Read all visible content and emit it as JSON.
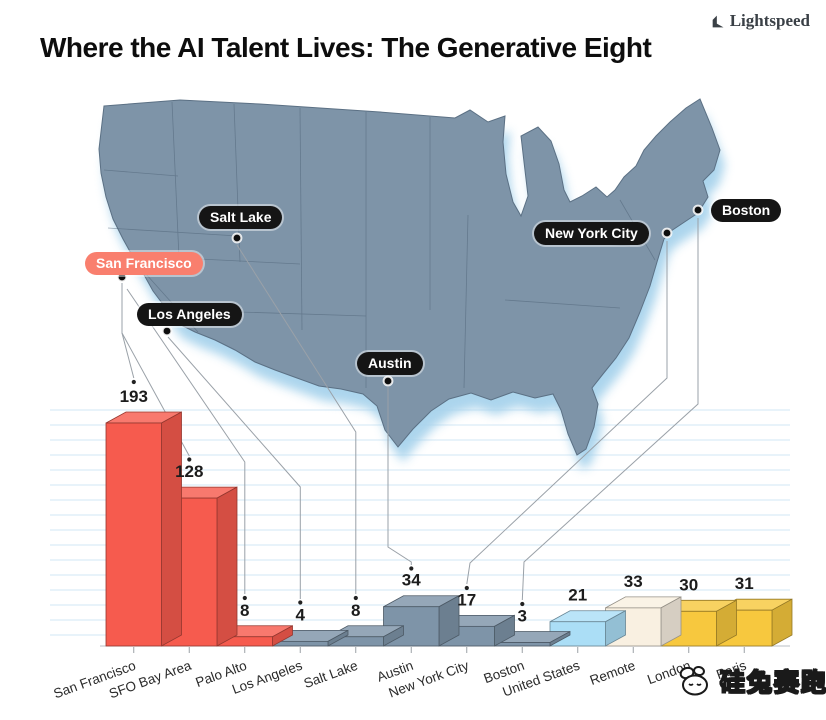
{
  "header": {
    "title": "Where the AI Talent Lives: The Generative Eight",
    "brand": "Lightspeed"
  },
  "map": {
    "labels": [
      {
        "id": "san-francisco",
        "text": "San Francisco",
        "style": "salmon"
      },
      {
        "id": "salt-lake",
        "text": "Salt Lake",
        "style": "dark"
      },
      {
        "id": "los-angeles",
        "text": "Los Angeles",
        "style": "dark"
      },
      {
        "id": "austin",
        "text": "Austin",
        "style": "dark"
      },
      {
        "id": "new-york-city",
        "text": "New York City",
        "style": "dark"
      },
      {
        "id": "boston",
        "text": "Boston",
        "style": "dark"
      }
    ]
  },
  "chart_data": {
    "type": "bar",
    "title": "Where the AI Talent Lives: The Generative Eight",
    "categories": [
      "San Francisco",
      "SFO Bay Area",
      "Palo Alto",
      "Los Angeles",
      "Salt Lake",
      "Austin",
      "New York City",
      "Boston",
      "United States",
      "Remote",
      "London",
      "Paris"
    ],
    "values": [
      193,
      128,
      8,
      4,
      8,
      34,
      17,
      3,
      21,
      33,
      30,
      31
    ],
    "bar_color_keys": [
      "red",
      "red",
      "red",
      "slate",
      "slate",
      "slate",
      "slate",
      "slate",
      "lightblue",
      "cream",
      "yellow",
      "yellow"
    ],
    "colors": {
      "red": "#f65b4e",
      "slate": "#7e94a8",
      "lightblue": "#abdef6",
      "cream": "#f9f0e1",
      "yellow": "#f7c83e",
      "map_fill": "#7e94a8",
      "map_shadow": "#a8d3ec",
      "gridline": "#d2e7f5",
      "highlight_label": "#f97f6e"
    },
    "xlabel": "",
    "ylabel": "",
    "ylim": [
      0,
      200
    ],
    "grid": "horizontal ruled light-blue lines",
    "legend": "none",
    "style": "3D blocks on a baseline, first three bars red, US cities slate blue, United States light blue, Remote cream, London/Paris yellow; city bars connected by thin lines to dots on a US map above"
  },
  "watermark": {
    "text": "硅兔赛跑"
  }
}
